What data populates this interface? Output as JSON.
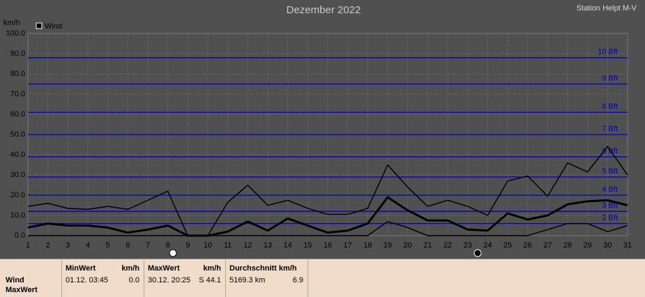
{
  "chart_data": {
    "type": "line",
    "title": "Dezember 2022",
    "station": "Station Helpt M-V",
    "y_label": "km/h",
    "x": [
      1,
      2,
      3,
      4,
      5,
      6,
      7,
      8,
      9,
      10,
      11,
      12,
      13,
      14,
      15,
      16,
      17,
      18,
      19,
      20,
      21,
      22,
      23,
      24,
      25,
      26,
      27,
      28,
      29,
      30,
      31
    ],
    "xlim": [
      1,
      31
    ],
    "xticks": [
      1,
      2,
      3,
      4,
      5,
      6,
      7,
      8,
      9,
      10,
      11,
      12,
      13,
      14,
      15,
      16,
      17,
      18,
      19,
      20,
      21,
      22,
      23,
      24,
      25,
      26,
      27,
      28,
      29,
      30,
      31
    ],
    "ylim": [
      0,
      100
    ],
    "yticks": [
      {
        "value": 0,
        "label": "0.0"
      },
      {
        "value": 10,
        "label": "10.0"
      },
      {
        "value": 20,
        "label": "20.0"
      },
      {
        "value": 30,
        "label": "30.0"
      },
      {
        "value": 40,
        "label": "40.0"
      },
      {
        "value": 50,
        "label": "50.0"
      },
      {
        "value": 60,
        "label": "60.0"
      },
      {
        "value": 70,
        "label": "70.0"
      },
      {
        "value": 80,
        "label": "80.0"
      },
      {
        "value": 90,
        "label": "90.0"
      },
      {
        "value": 100,
        "label": "100.0"
      }
    ],
    "grid": true,
    "bft": [
      {
        "value": 6,
        "label": "2 Bft"
      },
      {
        "value": 12,
        "label": "3 Bft"
      },
      {
        "value": 20,
        "label": "4 Bft"
      },
      {
        "value": 29,
        "label": "5 Bft"
      },
      {
        "value": 39,
        "label": "6 Bft"
      },
      {
        "value": 50,
        "label": "7 Bft"
      },
      {
        "value": 61,
        "label": "8 Bft"
      },
      {
        "value": 75,
        "label": "9 Bft"
      },
      {
        "value": 88,
        "label": "10 Bft"
      }
    ],
    "bft_color": "#0000c8",
    "series": [
      {
        "name": "Wind",
        "color": "#000000",
        "values": [
          4,
          6,
          5,
          5,
          4,
          1.5,
          3,
          5,
          0,
          0,
          2,
          7,
          2.5,
          8.5,
          5,
          1.5,
          2.5,
          6,
          19,
          12.5,
          7.5,
          7.5,
          3,
          2.5,
          11,
          8,
          10,
          15.5,
          17,
          17.5,
          15
        ],
        "high": [
          14.5,
          16,
          13.5,
          13,
          14.5,
          13,
          17.5,
          22,
          0,
          0,
          16.5,
          25,
          15,
          17.5,
          13.5,
          10.5,
          10.5,
          13.5,
          35,
          24,
          14.5,
          17.5,
          14.5,
          10,
          27,
          29.5,
          19.5,
          36,
          31.5,
          44.1,
          30
        ],
        "low": [
          0,
          0,
          0,
          0,
          0,
          0,
          0,
          0,
          0,
          0,
          0,
          0,
          0,
          0,
          0,
          0,
          0,
          0,
          7,
          4,
          0,
          0,
          0,
          0,
          0,
          0,
          3,
          6,
          6,
          2,
          5
        ]
      }
    ]
  },
  "summary": {
    "rows": [
      "Wind",
      "MaxWert"
    ],
    "min": {
      "title": "MinWert",
      "unit": "km/h",
      "time": "01.12.  03:45",
      "value": "0.0"
    },
    "max": {
      "title": "MaxWert",
      "unit": "km/h",
      "time": "30.12.  20:25",
      "value": "S 44.1"
    },
    "avg": {
      "title": "Durchschnitt km/h",
      "distance": "5169.3 km",
      "value": "6.9"
    }
  }
}
